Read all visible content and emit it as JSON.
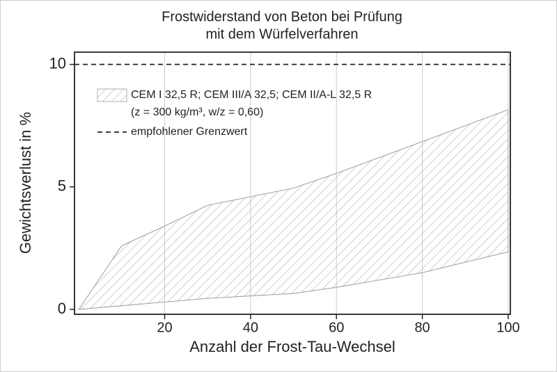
{
  "chart_data": {
    "type": "band",
    "title": [
      "Frostwiderstand von Beton bei Prüfung",
      "mit dem Würfelverfahren"
    ],
    "xlabel": "Anzahl der Frost-Tau-Wechsel",
    "ylabel": "Gewichtsverlust in %",
    "x": [
      0,
      10,
      20,
      30,
      40,
      50,
      60,
      80,
      100
    ],
    "series": [
      {
        "name": "CEM I 32,5 R; CEM III/A 32,5; CEM II/A-L 32,5 R",
        "note": "(z = 300 kg/m³, w/z = 0,60)",
        "color": "#999999",
        "upper": [
          0,
          2.6,
          3.4,
          4.25,
          4.6,
          4.95,
          5.55,
          6.85,
          8.15
        ],
        "lower": [
          0,
          0.15,
          0.3,
          0.45,
          0.55,
          0.65,
          0.9,
          1.5,
          2.35
        ]
      }
    ],
    "reference_line": {
      "name": "empfohlener Grenzwert",
      "value": 10,
      "style": "dashed",
      "color": "#222222"
    },
    "xlim": [
      -1,
      100.5
    ],
    "xticks": [
      20,
      40,
      60,
      80,
      100
    ],
    "ylim": [
      -0.2,
      10.5
    ],
    "yticks": [
      0,
      5,
      10
    ],
    "grid": "x"
  }
}
